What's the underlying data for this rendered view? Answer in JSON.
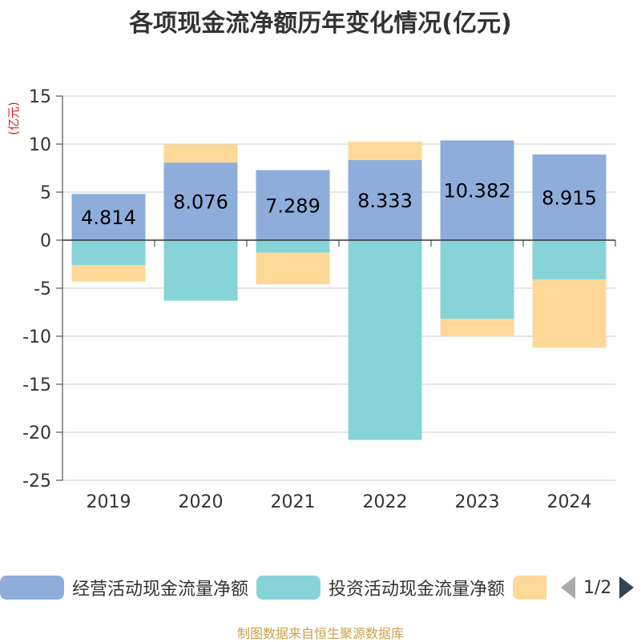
{
  "title": "各项现金流净额历年变化情况(亿元)",
  "source_note": "制图数据来自恒生聚源数据库",
  "legend_page": "1/2",
  "colors": {
    "operating": "#8eaddb",
    "investing": "#87d4d8",
    "financing": "#fed897",
    "axis": "#333333",
    "grid": "#cccccc",
    "unit_label": "#e02020"
  },
  "chart_data": {
    "type": "bar",
    "stacked": true,
    "title": "各项现金流净额历年变化情况(亿元)",
    "ylabel": "(亿元)",
    "ylim": [
      -25,
      15
    ],
    "yticks": [
      15,
      10,
      5,
      0,
      -5,
      -10,
      -15,
      -20,
      -25
    ],
    "grid": true,
    "legend_position": "bottom",
    "categories": [
      "2019",
      "2020",
      "2021",
      "2022",
      "2023",
      "2024"
    ],
    "series": [
      {
        "name": "经营活动现金流量净额",
        "color_key": "operating",
        "values": [
          4.814,
          8.076,
          7.289,
          8.333,
          10.382,
          8.915
        ],
        "show_labels": true
      },
      {
        "name": "投资活动现金流量净额",
        "color_key": "investing",
        "values": [
          -2.6,
          -6.3,
          -1.3,
          -20.8,
          -8.2,
          -4.1
        ],
        "show_labels": false
      },
      {
        "name": "",
        "color_key": "financing",
        "values": [
          -1.7,
          1.9,
          -3.3,
          1.9,
          -1.8,
          -7.1
        ],
        "show_labels": false
      }
    ]
  }
}
